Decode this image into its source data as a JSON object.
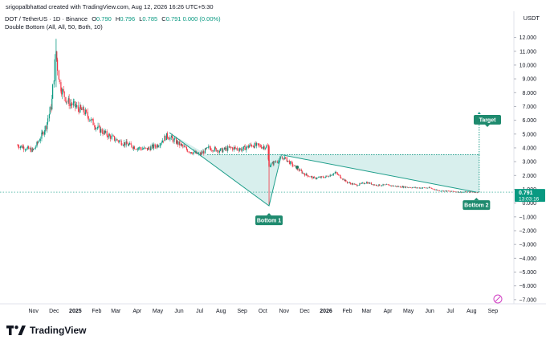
{
  "header": {
    "credit": "srigopalbhattad created with TradingView.com, Aug 12, 2026 16:26 UTC+5:30",
    "symbol": "DOT / TetherUS · 1D · Binance",
    "ohlc": {
      "o_label": "O",
      "o": "0.790",
      "h_label": "H",
      "h": "0.796",
      "l_label": "L",
      "l": "0.785",
      "c_label": "C",
      "c": "0.791",
      "change": "0.000 (0.00%)"
    },
    "indicator": "Double Bottom (All, All, 50, Both, 10)"
  },
  "currency": "USDT",
  "price_tag": {
    "value": "0.791",
    "countdown": "13:03:16"
  },
  "pattern_labels": {
    "bottom1": "Bottom 1",
    "bottom2": "Bottom 2",
    "target": "Target"
  },
  "logo": "TradingView",
  "colors": {
    "up": "#089981",
    "down": "#f23645",
    "pattern": "#1f9e8b",
    "fill": "#26a69a"
  },
  "chart_data": {
    "type": "line",
    "title": "DOT / TetherUS · 1D · Binance",
    "xlabel": "",
    "ylabel": "",
    "x_ticks": [
      "Nov",
      "Dec",
      "2025",
      "Feb",
      "Mar",
      "Apr",
      "May",
      "Jun",
      "Jul",
      "Aug",
      "Sep",
      "Oct",
      "Nov",
      "Dec",
      "2026",
      "Feb",
      "Mar",
      "Apr",
      "May",
      "Jun",
      "Jul",
      "Aug",
      "Sep"
    ],
    "y_ticks": [
      "12.000",
      "11.000",
      "10.000",
      "9.000",
      "8.000",
      "7.000",
      "6.000",
      "5.000",
      "4.000",
      "3.000",
      "2.000",
      "1.000",
      "0.000",
      "−1.000",
      "−2.000",
      "−3.000",
      "−4.000",
      "−5.000",
      "−6.000",
      "−7.000"
    ],
    "ylim": [
      -7.3,
      12.5
    ],
    "series": [
      {
        "values": [
          [
            "2024-10-01",
            4.3
          ],
          [
            "2024-10-15",
            4.1
          ],
          [
            "2024-11-01",
            3.8
          ],
          [
            "2024-11-10",
            4.6
          ],
          [
            "2024-11-20",
            5.6
          ],
          [
            "2024-11-28",
            7.2
          ],
          [
            "2024-12-04",
            11.0
          ],
          [
            "2024-12-10",
            8.5
          ],
          [
            "2024-12-20",
            7.4
          ],
          [
            "2025-01-01",
            7.0
          ],
          [
            "2025-01-15",
            6.6
          ],
          [
            "2025-02-01",
            5.5
          ],
          [
            "2025-02-15",
            5.0
          ],
          [
            "2025-03-01",
            4.6
          ],
          [
            "2025-03-15",
            4.3
          ],
          [
            "2025-04-01",
            4.0
          ],
          [
            "2025-04-15",
            3.9
          ],
          [
            "2025-05-01",
            4.2
          ],
          [
            "2025-05-15",
            4.9
          ],
          [
            "2025-06-01",
            4.3
          ],
          [
            "2025-06-15",
            3.8
          ],
          [
            "2025-07-01",
            3.5
          ],
          [
            "2025-07-15",
            4.0
          ],
          [
            "2025-08-01",
            3.8
          ],
          [
            "2025-08-15",
            4.0
          ],
          [
            "2025-09-01",
            3.9
          ],
          [
            "2025-09-15",
            4.2
          ],
          [
            "2025-10-01",
            4.1
          ],
          [
            "2025-10-08",
            4.1
          ],
          [
            "2025-10-10",
            2.7
          ],
          [
            "2025-10-20",
            3.0
          ],
          [
            "2025-11-01",
            3.3
          ],
          [
            "2025-11-15",
            2.7
          ],
          [
            "2025-12-01",
            2.1
          ],
          [
            "2025-12-15",
            1.8
          ],
          [
            "2026-01-01",
            1.9
          ],
          [
            "2026-01-15",
            2.2
          ],
          [
            "2026-02-01",
            1.5
          ],
          [
            "2026-02-15",
            1.3
          ],
          [
            "2026-03-01",
            1.5
          ],
          [
            "2026-03-15",
            1.3
          ],
          [
            "2026-04-01",
            1.3
          ],
          [
            "2026-04-15",
            1.2
          ],
          [
            "2026-05-01",
            1.15
          ],
          [
            "2026-05-15",
            1.1
          ],
          [
            "2026-06-01",
            1.1
          ],
          [
            "2026-06-15",
            0.9
          ],
          [
            "2026-07-01",
            0.85
          ],
          [
            "2026-07-15",
            0.8
          ],
          [
            "2026-08-12",
            0.791
          ]
        ]
      }
    ],
    "pattern": {
      "neckline": 3.5,
      "points": [
        [
          "2025-05-18",
          5.1
        ],
        [
          "2025-10-10",
          -0.2
        ],
        [
          "2025-10-28",
          3.5
        ],
        [
          "2026-08-08",
          0.79
        ]
      ],
      "target": 6.5
    }
  }
}
